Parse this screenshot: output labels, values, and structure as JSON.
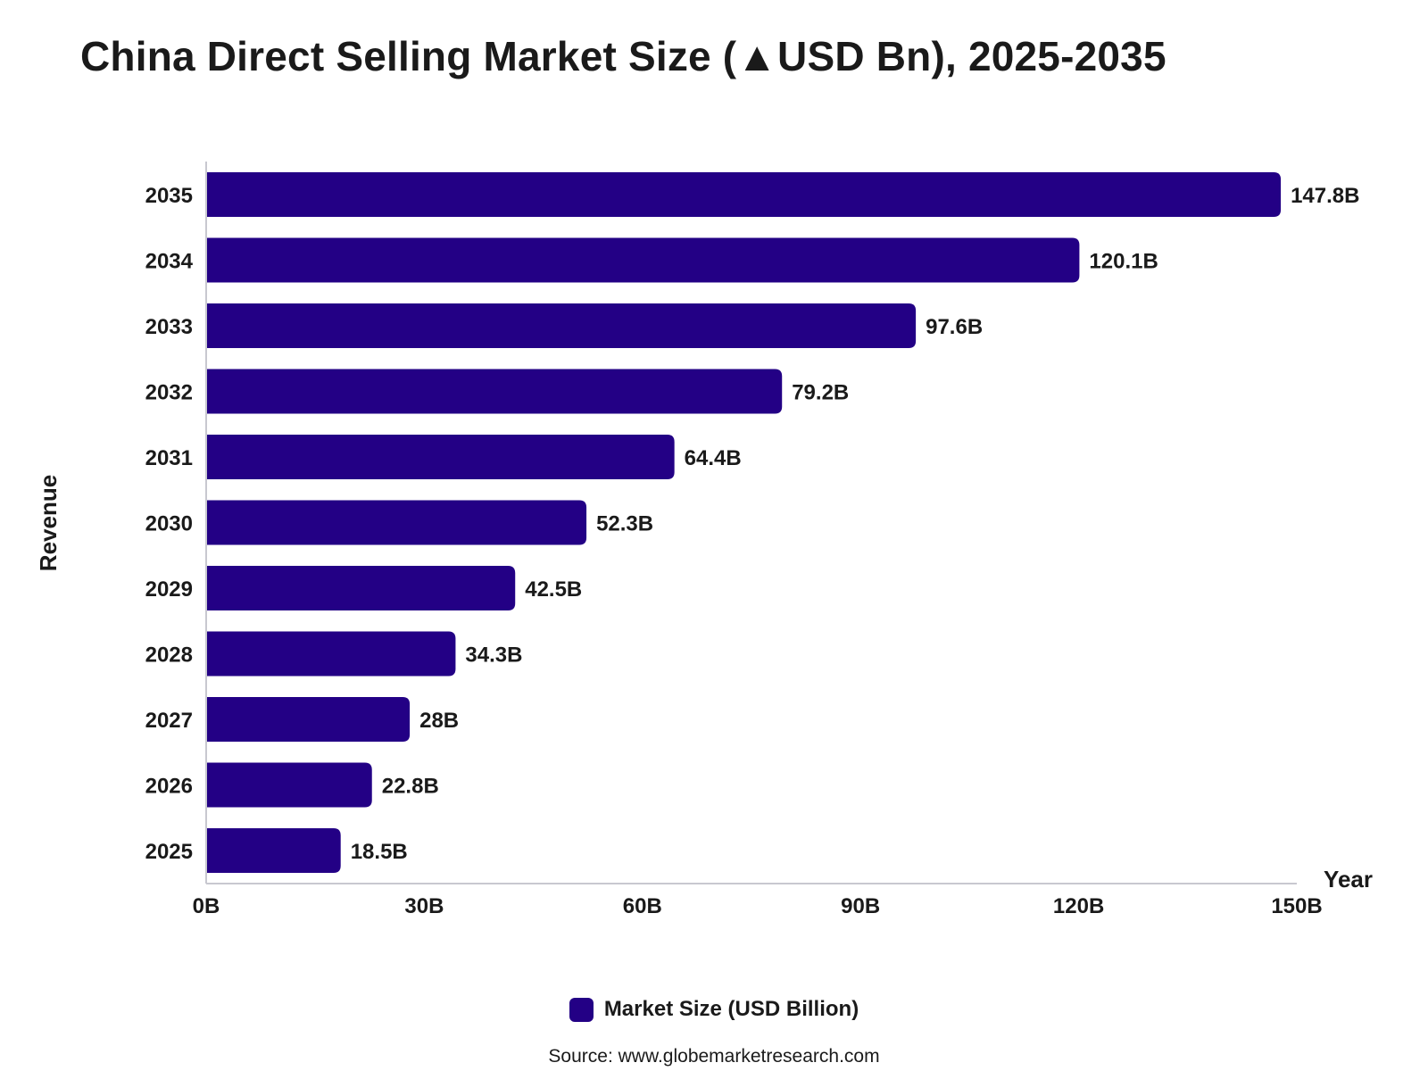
{
  "title": "China Direct Selling Market Size (▲USD Bn), 2025-2035",
  "colors": {
    "bar": "#230085",
    "axis": "#c8c8d0"
  },
  "legend": {
    "label": "Market Size (USD Billion)"
  },
  "source": "Source: www.globemarketresearch.com",
  "chart_data": {
    "type": "bar",
    "orientation": "horizontal",
    "title": "China Direct Selling Market Size (▲USD Bn), 2025-2035",
    "categories": [
      "2035",
      "2034",
      "2033",
      "2032",
      "2031",
      "2030",
      "2029",
      "2028",
      "2027",
      "2026",
      "2025"
    ],
    "series": [
      {
        "name": "Market Size (USD Billion)",
        "values": [
          147.8,
          120.1,
          97.6,
          79.2,
          64.4,
          52.3,
          42.5,
          34.3,
          28,
          22.8,
          18.5
        ],
        "labels": [
          "147.8B",
          "120.1B",
          "97.6B",
          "79.2B",
          "64.4B",
          "52.3B",
          "42.5B",
          "34.3B",
          "28B",
          "22.8B",
          "18.5B"
        ]
      }
    ],
    "value_axis": {
      "label": "Year",
      "range": [
        0,
        150
      ],
      "ticks": [
        0,
        30,
        60,
        90,
        120,
        150
      ],
      "tick_labels": [
        "0B",
        "30B",
        "60B",
        "90B",
        "120B",
        "150B"
      ]
    },
    "category_axis": {
      "label": "Revenue"
    },
    "grid": false,
    "legend_position": "bottom"
  }
}
